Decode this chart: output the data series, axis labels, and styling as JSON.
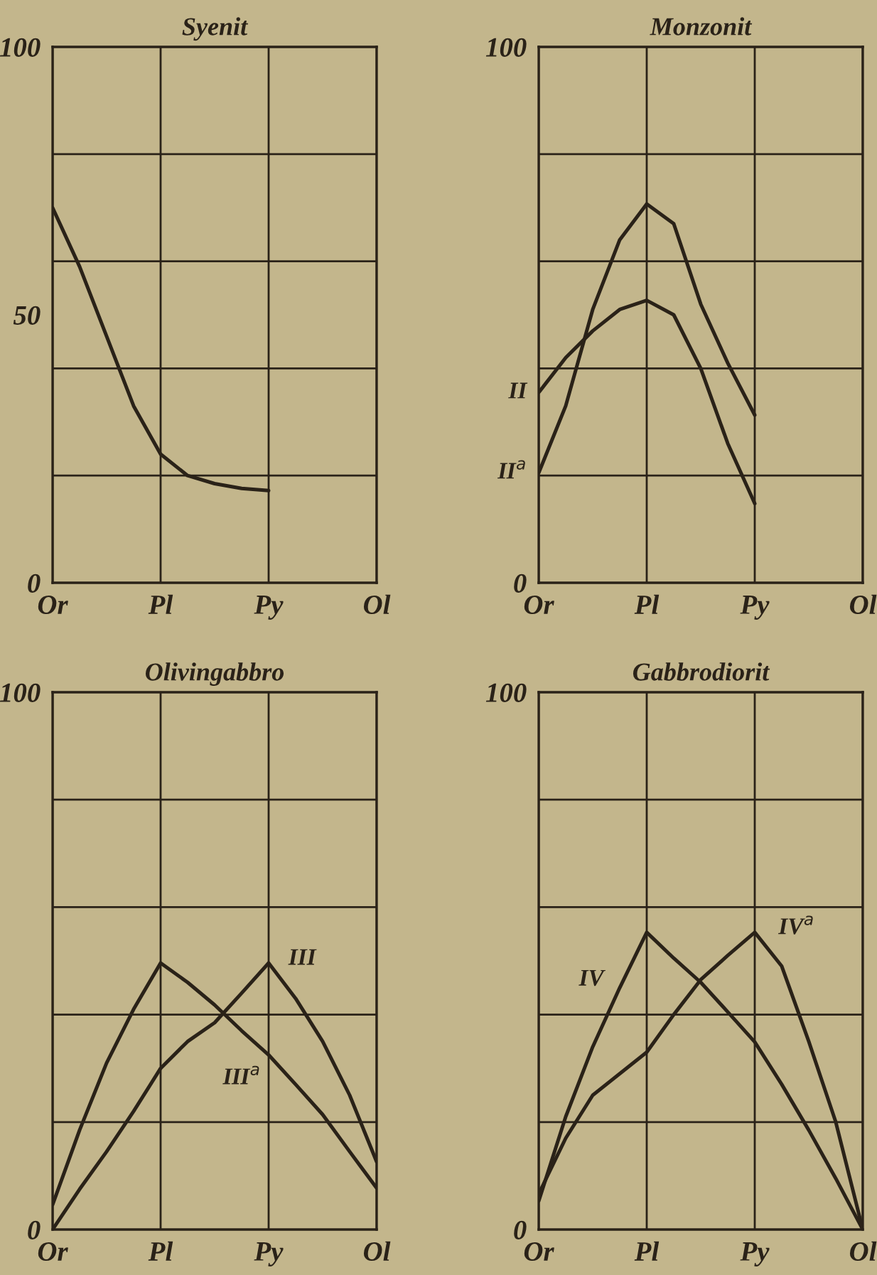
{
  "chart_data": [
    {
      "type": "line",
      "title": "Syenit",
      "categories": [
        "Or",
        null,
        null,
        null,
        "Pl",
        null,
        null,
        null,
        "Py",
        null,
        null,
        null,
        "Ol"
      ],
      "ylim": [
        0,
        100
      ],
      "yticks": [
        0,
        50,
        100
      ],
      "grid": "x",
      "ref_lines": [
        {
          "axis": "y",
          "value": 20
        },
        {
          "axis": "y",
          "value": 40
        },
        {
          "axis": "y",
          "value": 60
        },
        {
          "axis": "y",
          "value": 80
        }
      ],
      "series": [
        {
          "color": "#2a2218",
          "values": [
            70,
            59,
            46,
            33,
            24,
            20,
            18.5,
            17.6,
            17.2,
            null,
            null,
            null,
            null
          ]
        }
      ]
    },
    {
      "type": "line",
      "title": "Monzonit",
      "categories": [
        "Or",
        null,
        null,
        null,
        "Pl",
        null,
        null,
        null,
        "Py",
        null,
        null,
        null,
        "Ol"
      ],
      "ylim": [
        0,
        100
      ],
      "yticks": [
        0,
        100
      ],
      "grid": "x",
      "ref_lines": [
        {
          "axis": "y",
          "value": 20
        },
        {
          "axis": "y",
          "value": 40
        },
        {
          "axis": "y",
          "value": 60
        },
        {
          "axis": "y",
          "value": 80
        }
      ],
      "series": [
        {
          "name": "II",
          "color": "#2a2218",
          "values": [
            35.5,
            42,
            47,
            51,
            52.7,
            50,
            40,
            26,
            14.8,
            null,
            null,
            null,
            null
          ]
        },
        {
          "name": "II$^{a}$",
          "color": "#2a2218",
          "values": [
            20.5,
            33,
            51,
            64,
            70.7,
            67,
            52,
            41,
            31.3,
            null,
            null,
            null,
            null
          ]
        }
      ]
    },
    {
      "type": "line",
      "title": "Olivingabbro",
      "categories": [
        "Or",
        null,
        null,
        null,
        "Pl",
        null,
        null,
        null,
        "Py",
        null,
        null,
        null,
        "Ol"
      ],
      "ylim": [
        0,
        100
      ],
      "yticks": [
        0,
        100
      ],
      "grid": "x",
      "ref_lines": [
        {
          "axis": "y",
          "value": 20
        },
        {
          "axis": "y",
          "value": 40
        },
        {
          "axis": "y",
          "value": 60
        },
        {
          "axis": "y",
          "value": 80
        }
      ],
      "series": [
        {
          "name": "III",
          "color": "#2a2218",
          "values": [
            0,
            7.5,
            14.5,
            22,
            30,
            35,
            38.5,
            44,
            49.6,
            43,
            35,
            25,
            12.6
          ]
        },
        {
          "name": "III$^{a}$",
          "color": "#2a2218",
          "values": [
            4.6,
            18.5,
            31,
            41,
            49.6,
            46,
            41.8,
            37,
            32.5,
            27,
            21.4,
            14.5,
            7.7
          ]
        }
      ]
    },
    {
      "type": "line",
      "title": "Gabbrodiorit",
      "categories": [
        "Or",
        null,
        null,
        null,
        "Pl",
        null,
        null,
        null,
        "Py",
        null,
        null,
        null,
        "Ol"
      ],
      "ylim": [
        0,
        100
      ],
      "yticks": [
        0,
        100
      ],
      "grid": "x",
      "ref_lines": [
        {
          "axis": "y",
          "value": 20
        },
        {
          "axis": "y",
          "value": 40
        },
        {
          "axis": "y",
          "value": 60
        },
        {
          "axis": "y",
          "value": 80
        }
      ],
      "series": [
        {
          "name": "IV",
          "color": "#2a2218",
          "values": [
            5.3,
            21,
            34,
            45,
            55.3,
            50.5,
            46,
            40.5,
            34.9,
            27,
            18.5,
            9.5,
            0
          ]
        },
        {
          "name": "IV$^{a}$",
          "color": "#2a2218",
          "values": [
            6.6,
            17,
            25,
            29,
            33,
            40,
            46.5,
            51,
            55.3,
            49,
            35,
            20,
            0
          ]
        }
      ]
    }
  ]
}
